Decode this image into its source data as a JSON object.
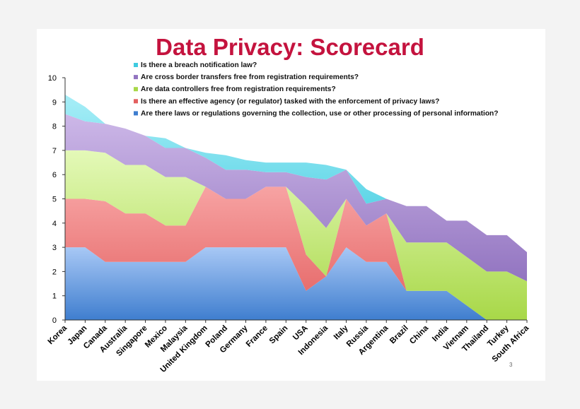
{
  "page_number": "3",
  "chart_data": {
    "type": "area",
    "stacked": true,
    "title": "Data Privacy: Scorecard",
    "ylim": [
      0,
      10
    ],
    "yticks": [
      0,
      1,
      2,
      3,
      4,
      5,
      6,
      7,
      8,
      9,
      10
    ],
    "grid": false,
    "legend_position": "top",
    "categories": [
      "Korea",
      "Japan",
      "Canada",
      "Australia",
      "Singapore",
      "Mexico",
      "Malaysia",
      "United Kingdom",
      "Poland",
      "Germany",
      "France",
      "Spain",
      "USA",
      "Indonesia",
      "Italy",
      "Russia",
      "Argentina",
      "Brazil",
      "China",
      "India",
      "Vietnam",
      "Thailand",
      "Turkey",
      "South Africa"
    ],
    "series": [
      {
        "name": "Are there laws or regulations governing the collection, use or other processing of personal information?",
        "color": "#5b9bd5",
        "values": [
          3.0,
          3.0,
          2.4,
          2.4,
          2.4,
          2.4,
          2.4,
          3.0,
          3.0,
          3.0,
          3.0,
          3.0,
          1.2,
          1.8,
          3.0,
          2.4,
          2.4,
          1.2,
          1.2,
          1.2,
          0.6,
          0.0,
          0.0,
          0.0
        ]
      },
      {
        "name": "Is there an effective agency (or regulator) tasked with the enforcement of privacy laws?",
        "color": "#ee7878",
        "values": [
          2.0,
          2.0,
          2.5,
          2.0,
          2.0,
          1.5,
          1.5,
          2.5,
          2.0,
          2.0,
          2.5,
          2.5,
          1.5,
          0.0,
          2.0,
          1.5,
          2.0,
          0.0,
          0.0,
          0.0,
          0.0,
          0.0,
          0.0,
          0.0
        ]
      },
      {
        "name": "Are data controllers free from registration requirements?",
        "color": "#c8ec7a",
        "values": [
          2.0,
          2.0,
          2.0,
          2.0,
          2.0,
          2.0,
          2.0,
          0.0,
          0.0,
          0.0,
          0.0,
          0.0,
          2.0,
          2.0,
          0.0,
          0.0,
          0.0,
          2.0,
          2.0,
          2.0,
          2.0,
          2.0,
          2.0,
          1.6
        ]
      },
      {
        "name": "Are cross border transfers free from registration requirements?",
        "color": "#a98ecb",
        "values": [
          1.5,
          1.2,
          1.2,
          1.5,
          1.2,
          1.2,
          1.2,
          1.2,
          1.2,
          1.2,
          0.6,
          0.6,
          1.2,
          2.0,
          1.2,
          0.9,
          0.6,
          1.5,
          1.5,
          0.9,
          1.5,
          1.5,
          1.5,
          1.2
        ]
      },
      {
        "name": "Is there a breach notification law?",
        "color": "#5fd9ea",
        "values": [
          0.8,
          0.6,
          0.0,
          0.0,
          0.0,
          0.4,
          0.0,
          0.2,
          0.6,
          0.4,
          0.4,
          0.4,
          0.6,
          0.6,
          0.0,
          0.6,
          0.0,
          0.0,
          0.0,
          0.0,
          0.0,
          0.0,
          0.0,
          0.0
        ]
      }
    ],
    "legend_order": [
      4,
      3,
      2,
      1,
      0
    ]
  }
}
